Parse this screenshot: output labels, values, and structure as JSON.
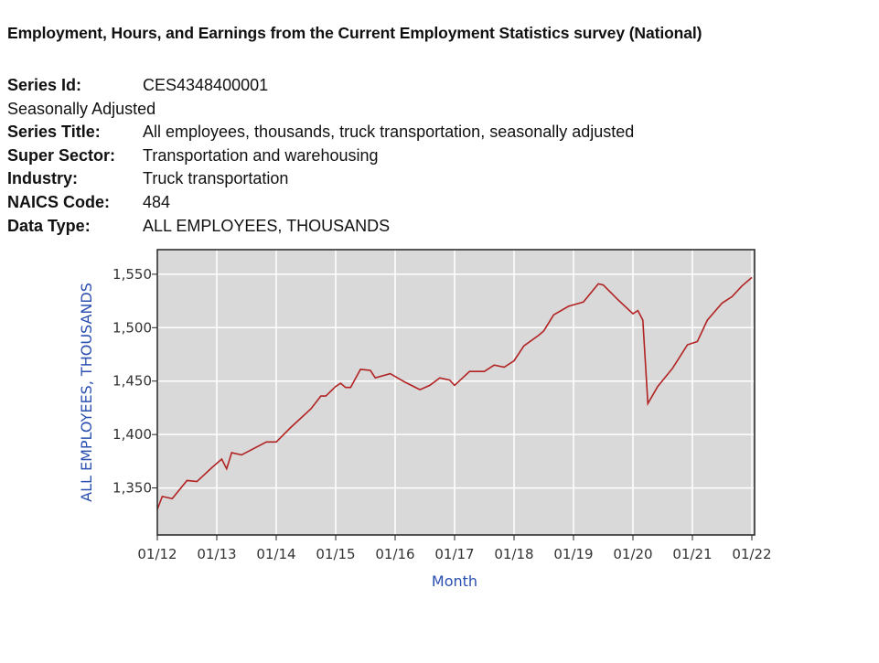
{
  "header": {
    "title": "Employment, Hours, and Earnings from the Current Employment Statistics survey (National)"
  },
  "series_info": {
    "series_id_label": "Series Id:",
    "series_id": "CES4348400001",
    "adjustment": "Seasonally Adjusted",
    "rows": [
      {
        "label": "Series Title:",
        "value": "All employees, thousands, truck transportation, seasonally adjusted"
      },
      {
        "label": "Super Sector:",
        "value": "Transportation and warehousing"
      },
      {
        "label": "Industry:",
        "value": "Truck transportation"
      },
      {
        "label": "NAICS Code:",
        "value": "484"
      },
      {
        "label": "Data Type:",
        "value": "ALL EMPLOYEES, THOUSANDS"
      }
    ]
  },
  "chart_data": {
    "type": "line",
    "title": "",
    "xlabel": "Month",
    "ylabel": "ALL EMPLOYEES, THOUSANDS",
    "xlim": [
      "2012-01",
      "2022-02"
    ],
    "ylim": [
      1306,
      1573
    ],
    "grid": true,
    "legend": "none",
    "colors": {
      "line": "#b22222",
      "plot_bg": "#d9d9d9",
      "grid": "#ffffff",
      "axis_label": "#2a4fb0"
    },
    "x_ticks": [
      "01/12",
      "01/13",
      "01/14",
      "01/15",
      "01/16",
      "01/17",
      "01/18",
      "01/19",
      "01/20",
      "01/21",
      "01/22"
    ],
    "y_ticks": [
      1350,
      1400,
      1450,
      1500,
      1550
    ],
    "y_tick_labels": [
      "1,350",
      "1,400",
      "1,450",
      "1,500",
      "1,550"
    ],
    "series": [
      {
        "x": [
          "2012-01",
          "2012-02",
          "2012-04",
          "2012-07",
          "2012-09",
          "2012-12",
          "2013-02",
          "2013-03",
          "2013-04",
          "2013-06",
          "2013-11",
          "2014-01",
          "2014-04",
          "2014-08",
          "2014-10",
          "2014-11",
          "2015-01",
          "2015-02",
          "2015-03",
          "2015-04",
          "2015-06",
          "2015-08",
          "2015-09",
          "2015-12",
          "2016-03",
          "2016-06",
          "2016-08",
          "2016-10",
          "2016-12",
          "2017-01",
          "2017-04",
          "2017-07",
          "2017-09",
          "2017-11",
          "2018-01",
          "2018-03",
          "2018-06",
          "2018-07",
          "2018-09",
          "2018-12",
          "2019-03",
          "2019-06",
          "2019-07",
          "2019-10",
          "2020-01",
          "2020-02",
          "2020-03",
          "2020-04",
          "2020-06",
          "2020-09",
          "2020-12",
          "2021-02",
          "2021-04",
          "2021-07",
          "2021-09",
          "2021-11",
          "2022-01"
        ],
        "y": [
          1330,
          1342,
          1340,
          1357,
          1356,
          1369,
          1377,
          1368,
          1383,
          1381,
          1393,
          1393,
          1407,
          1424,
          1436,
          1436,
          1445,
          1448,
          1444,
          1444,
          1461,
          1460,
          1453,
          1457,
          1449,
          1442,
          1446,
          1453,
          1451,
          1446,
          1459,
          1459,
          1465,
          1463,
          1469,
          1483,
          1493,
          1497,
          1512,
          1520,
          1524,
          1541,
          1540,
          1526,
          1513,
          1516,
          1507,
          1429,
          1445,
          1462,
          1484,
          1487,
          1507,
          1523,
          1529,
          1539,
          1547
        ]
      }
    ]
  }
}
